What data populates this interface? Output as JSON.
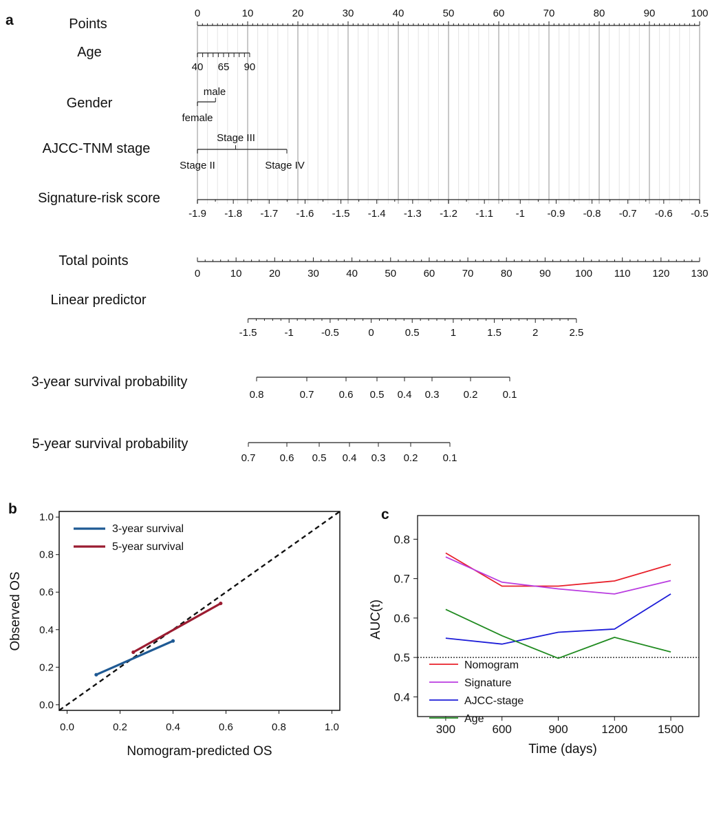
{
  "panel_labels": [
    "a",
    "b",
    "c"
  ],
  "chart_data": [
    {
      "panel": "a",
      "type": "nomogram",
      "rows": [
        {
          "label": "Points",
          "ticks": [
            "0",
            "10",
            "20",
            "30",
            "40",
            "50",
            "60",
            "70",
            "80",
            "90",
            "100"
          ]
        },
        {
          "label": "Age",
          "ticks": [
            "40",
            "65",
            "90"
          ]
        },
        {
          "label": "Gender",
          "ticks": [
            "male",
            "female"
          ]
        },
        {
          "label": "AJCC-TNM stage",
          "ticks": [
            "Stage III",
            "Stage II",
            "Stage IV"
          ]
        },
        {
          "label": "Signature-risk score",
          "ticks": [
            "-1.9",
            "-1.8",
            "-1.7",
            "-1.6",
            "-1.5",
            "-1.4",
            "-1.3",
            "-1.2",
            "-1.1",
            "-1",
            "-0.9",
            "-0.8",
            "-0.7",
            "-0.6",
            "-0.5"
          ]
        },
        {
          "label": "Total points",
          "ticks": [
            "0",
            "10",
            "20",
            "30",
            "40",
            "50",
            "60",
            "70",
            "80",
            "90",
            "100",
            "110",
            "120",
            "130"
          ]
        },
        {
          "label": "Linear predictor",
          "ticks": [
            "-1.5",
            "-1",
            "-0.5",
            "0",
            "0.5",
            "1",
            "1.5",
            "2",
            "2.5"
          ]
        },
        {
          "label": "3-year survival probability",
          "ticks": [
            "0.8",
            "0.7",
            "0.6",
            "0.5",
            "0.4",
            "0.3",
            "0.2",
            "0.1"
          ]
        },
        {
          "label": "5-year survival probability",
          "ticks": [
            "0.7",
            "0.6",
            "0.5",
            "0.4",
            "0.3",
            "0.2",
            "0.1"
          ]
        }
      ]
    },
    {
      "panel": "b",
      "type": "line",
      "xlabel": "Nomogram-predicted OS",
      "ylabel": "Observed OS",
      "xlim": [
        -0.03,
        1.03
      ],
      "ylim": [
        -0.03,
        1.03
      ],
      "xticks": [
        "0.0",
        "0.2",
        "0.4",
        "0.6",
        "0.8",
        "1.0"
      ],
      "yticks": [
        "0.0",
        "0.2",
        "0.4",
        "0.6",
        "0.8",
        "1.0"
      ],
      "reference_line": "diagonal, dashed",
      "legend_position": "top-left",
      "series": [
        {
          "name": "3-year survival",
          "color": "#1f5a94",
          "x": [
            0.11,
            0.4
          ],
          "y": [
            0.16,
            0.34
          ]
        },
        {
          "name": "5-year survival",
          "color": "#9b1c31",
          "x": [
            0.25,
            0.58
          ],
          "y": [
            0.28,
            0.54
          ]
        }
      ]
    },
    {
      "panel": "c",
      "type": "line",
      "xlabel": "Time (days)",
      "ylabel": "AUC(t)",
      "x": [
        300,
        600,
        900,
        1200,
        1500
      ],
      "xticks": [
        "300",
        "600",
        "900",
        "1200",
        "1500"
      ],
      "yticks": [
        "0.4",
        "0.5",
        "0.6",
        "0.7",
        "0.8"
      ],
      "xlim": [
        150,
        1650
      ],
      "ylim": [
        0.35,
        0.86
      ],
      "reference_line": "y = 0.5, dotted",
      "legend_position": "bottom-left",
      "series": [
        {
          "name": "Nomogram",
          "color": "#e8202a",
          "values": [
            0.765,
            0.681,
            0.681,
            0.694,
            0.736
          ]
        },
        {
          "name": "Signature",
          "color": "#b93be0",
          "values": [
            0.755,
            0.691,
            0.674,
            0.661,
            0.695
          ]
        },
        {
          "name": "AJCC-stage",
          "color": "#1c1cd8",
          "values": [
            0.549,
            0.534,
            0.564,
            0.572,
            0.661
          ]
        },
        {
          "name": "Age",
          "color": "#1f8a1f",
          "values": [
            0.622,
            0.555,
            0.498,
            0.551,
            0.514
          ]
        }
      ]
    }
  ]
}
